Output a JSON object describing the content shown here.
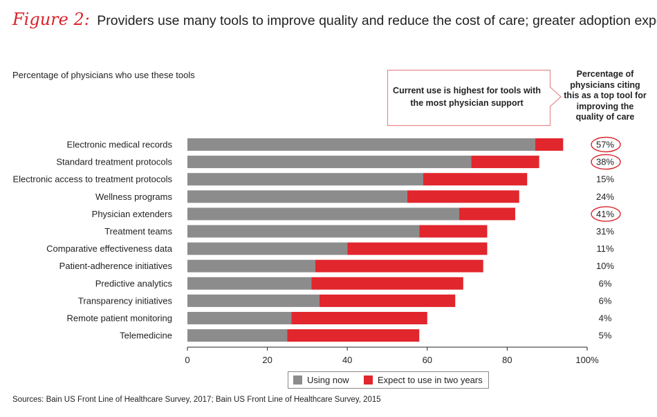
{
  "figure": {
    "label": "Figure 2:",
    "title": "Providers use many tools to improve quality and reduce the cost of care; greater adoption expected"
  },
  "subtitle": "Percentage of physicians who use these tools",
  "callout": "Current use is highest for tools with the most physician support",
  "right_header": "Percentage of physicians citing this as a top tool for improving the quality of care",
  "source": "Sources: Bain US Front Line of Healthcare Survey, 2017; Bain US Front Line of Healthcare Survey, 2015",
  "colors": {
    "using_now": "#8c8c8c",
    "expect": "#e1262d",
    "accent": "#d8232a"
  },
  "chart_data": {
    "type": "bar",
    "orientation": "horizontal",
    "stacked": true,
    "categories": [
      "Electronic medical records",
      "Standard treatment protocols",
      "Electronic access to treatment protocols",
      "Wellness programs",
      "Physician extenders",
      "Treatment teams",
      "Comparative effectiveness data",
      "Patient-adherence initiatives",
      "Predictive analytics",
      "Transparency initiatives",
      "Remote patient monitoring",
      "Telemedicine"
    ],
    "series": [
      {
        "name": "Using now",
        "values": [
          87,
          71,
          59,
          55,
          68,
          58,
          40,
          32,
          31,
          33,
          26,
          25
        ]
      },
      {
        "name": "Expect to use in two years",
        "values": [
          7,
          17,
          26,
          28,
          14,
          17,
          35,
          42,
          38,
          34,
          34,
          33
        ]
      }
    ],
    "right_labels": [
      "57%",
      "38%",
      "15%",
      "24%",
      "41%",
      "31%",
      "11%",
      "10%",
      "6%",
      "6%",
      "4%",
      "5%"
    ],
    "circled": [
      true,
      true,
      false,
      false,
      true,
      false,
      false,
      false,
      false,
      false,
      false,
      false
    ],
    "xticks": [
      "0",
      "20",
      "40",
      "60",
      "80",
      "100%"
    ],
    "xlim": [
      0,
      100
    ],
    "legend": [
      "Using now",
      "Expect to use in two years"
    ],
    "legend_position": "bottom"
  }
}
